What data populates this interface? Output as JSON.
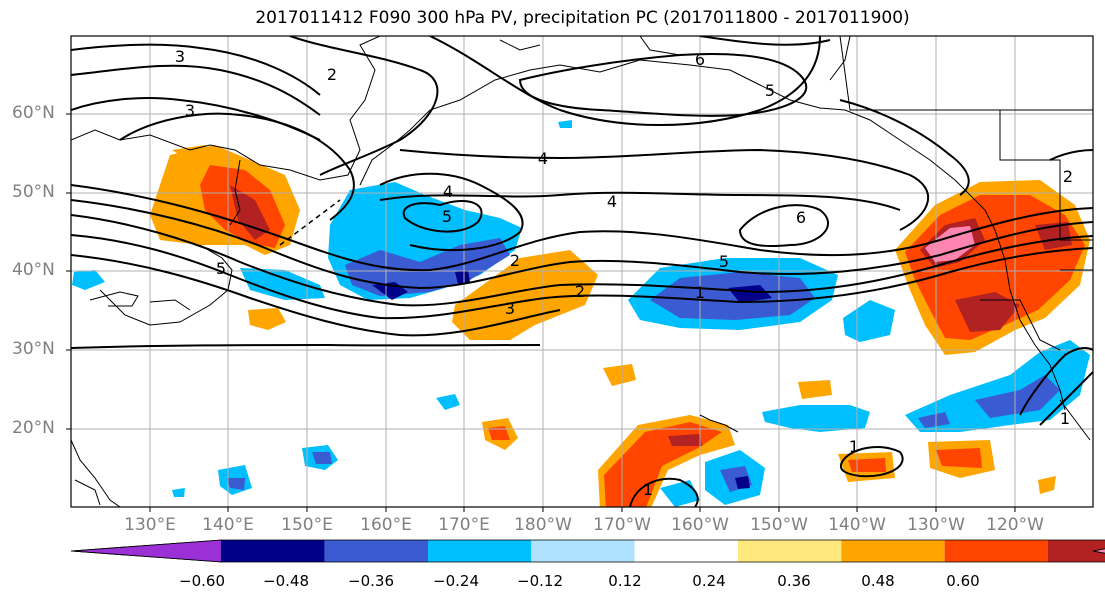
{
  "title": "2017011412 F090 300 hPa PV, precipitation PC (2017011800 - 2017011900)",
  "lat_labels": [
    "60°N",
    "50°N",
    "40°N",
    "30°N",
    "20°N"
  ],
  "lon_labels": [
    "130°E",
    "140°E",
    "150°E",
    "160°E",
    "170°E",
    "180°W",
    "170°W",
    "160°W",
    "150°W",
    "140°W",
    "130°W",
    "120°W"
  ],
  "colorbar": {
    "colors": [
      "#9b30d6",
      "#00008b",
      "#3a5bd1",
      "#00bfff",
      "#b0e2ff",
      "#ffffff",
      "#ffe97f",
      "#ffa500",
      "#ff4500",
      "#b22222",
      "#ff85b0"
    ],
    "ticks": [
      "−0.60",
      "−0.48",
      "−0.36",
      "−0.24",
      "−0.12",
      "0.12",
      "0.24",
      "0.36",
      "0.48",
      "0.60"
    ]
  },
  "contour_labels": [
    "3",
    "2",
    "3",
    "6",
    "5",
    "4",
    "4",
    "4",
    "5",
    "2",
    "5",
    "6",
    "5",
    "1",
    "3",
    "2",
    "1",
    "1",
    "1",
    "2"
  ],
  "map_layers": {
    "fill_colors": {
      "orange": "#ffa500",
      "red": "#ff4500",
      "dark_red": "#b22222",
      "pink": "#ff85b0",
      "yellow": "#ffe97f",
      "light_blue": "#b0e2ff",
      "sky_blue": "#00bfff",
      "royal_blue": "#3a5bd1",
      "navy": "#00008b"
    }
  }
}
